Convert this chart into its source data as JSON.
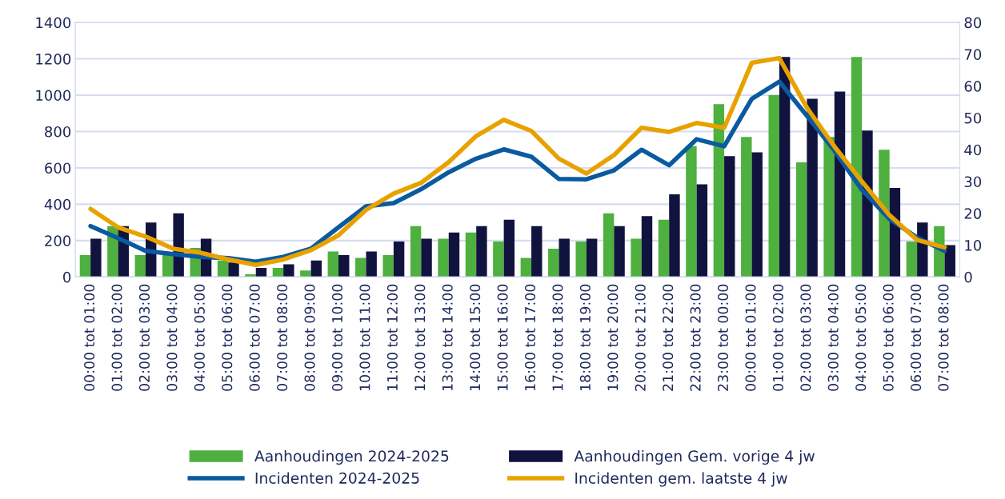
{
  "chart_data": {
    "type": "bar",
    "categories": [
      "00:00 tot 01:00",
      "01:00 tot 02:00",
      "02:00 tot 03:00",
      "03:00 tot 04:00",
      "04:00 tot 05:00",
      "05:00 tot 06:00",
      "06:00 tot 07:00",
      "07:00 tot 08:00",
      "08:00 tot 09:00",
      "09:00 tot 10:00",
      "10:00 tot 11:00",
      "11:00 tot 12:00",
      "12:00 tot 13:00",
      "13:00 tot 14:00",
      "14:00 tot 15:00",
      "15:00 tot 16:00",
      "16:00 tot 17:00",
      "17:00 tot 18:00",
      "18:00 tot 19:00",
      "19:00 tot 20:00",
      "20:00 tot 21:00",
      "21:00 tot 22:00",
      "22:00 tot 23:00",
      "23:00 tot 00:00",
      "00:00 tot 01:00",
      "01:00 tot 02:00",
      "02:00 tot 03:00",
      "03:00 tot 04:00",
      "04:00 tot 05:00",
      "05:00 tot 06:00",
      "06:00 tot 07:00",
      "07:00 tot 08:00"
    ],
    "series": [
      {
        "name": "Aanhoudingen 2024-2025",
        "color": "#4eb03f",
        "values": [
          120,
          280,
          120,
          130,
          160,
          90,
          15,
          50,
          35,
          140,
          105,
          120,
          280,
          210,
          245,
          195,
          105,
          155,
          195,
          350,
          210,
          315,
          720,
          950,
          770,
          1000,
          630,
          770,
          1210,
          700,
          195,
          280
        ]
      },
      {
        "name": "Aanhoudingen Gem. vorige 4 jw",
        "color": "#11133f",
        "values": [
          210,
          280,
          300,
          350,
          210,
          80,
          50,
          70,
          90,
          120,
          140,
          195,
          210,
          245,
          280,
          315,
          280,
          210,
          210,
          280,
          335,
          455,
          510,
          665,
          685,
          1210,
          980,
          1020,
          805,
          490,
          300,
          175
        ]
      },
      {
        "name": "Incidenten 2024-2025",
        "type": "line",
        "axis": "y2",
        "color": "#0a5aa0",
        "values": [
          16,
          12.2,
          8.2,
          7.2,
          6.3,
          5.9,
          4.8,
          6.3,
          8.9,
          15.6,
          22.2,
          23.2,
          27.6,
          32.9,
          37.2,
          40.1,
          37.8,
          30.8,
          30.7,
          33.5,
          40,
          35.1,
          43.3,
          41.1,
          56,
          61.4,
          50.7,
          39.7,
          27.4,
          18.2,
          12.4,
          8.2
        ]
      },
      {
        "name": "Incidenten gem. laatste 4 jw",
        "type": "line",
        "axis": "y2",
        "color": "#e8a200",
        "values": [
          21.4,
          15.6,
          12.7,
          8.9,
          7.6,
          5.5,
          3.8,
          5.5,
          8.4,
          13.1,
          21.1,
          26.2,
          29.6,
          36.1,
          44.3,
          49.4,
          45.9,
          37.2,
          32.5,
          38.3,
          46.9,
          45.6,
          48.4,
          46.9,
          67.3,
          68.8,
          53.2,
          41,
          30,
          19.4,
          11.6,
          9.3
        ]
      }
    ],
    "ylim": [
      0,
      1400
    ],
    "yticks": [
      0,
      200,
      400,
      600,
      800,
      1000,
      1200,
      1400
    ],
    "y2lim": [
      0,
      80
    ],
    "y2ticks": [
      0,
      10,
      20,
      30,
      40,
      50,
      60,
      70,
      80
    ],
    "grid": "y",
    "legend": "bottom"
  }
}
